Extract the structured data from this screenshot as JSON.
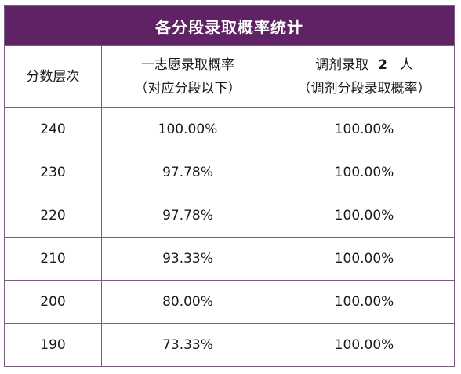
{
  "title": "各分段录取概率统计",
  "headers": {
    "col1": "分数层次",
    "col2_line1": "一志愿录取概率",
    "col2_line2": "（对应分段以下）",
    "col3_prefix": "调剂录取",
    "col3_number": "2",
    "col3_suffix": "人",
    "col3_line2": "（调剂分段录取概率）"
  },
  "rows": [
    {
      "score": "240",
      "first_choice": "100.00%",
      "adjust": "100.00%"
    },
    {
      "score": "230",
      "first_choice": "97.78%",
      "adjust": "100.00%"
    },
    {
      "score": "220",
      "first_choice": "97.78%",
      "adjust": "100.00%"
    },
    {
      "score": "210",
      "first_choice": "93.33%",
      "adjust": "100.00%"
    },
    {
      "score": "200",
      "first_choice": "80.00%",
      "adjust": "100.00%"
    },
    {
      "score": "190",
      "first_choice": "73.33%",
      "adjust": "100.00%"
    }
  ],
  "colors": {
    "header_bg": "#5f2264",
    "header_text": "#ffffff",
    "border": "#7a5a80"
  }
}
